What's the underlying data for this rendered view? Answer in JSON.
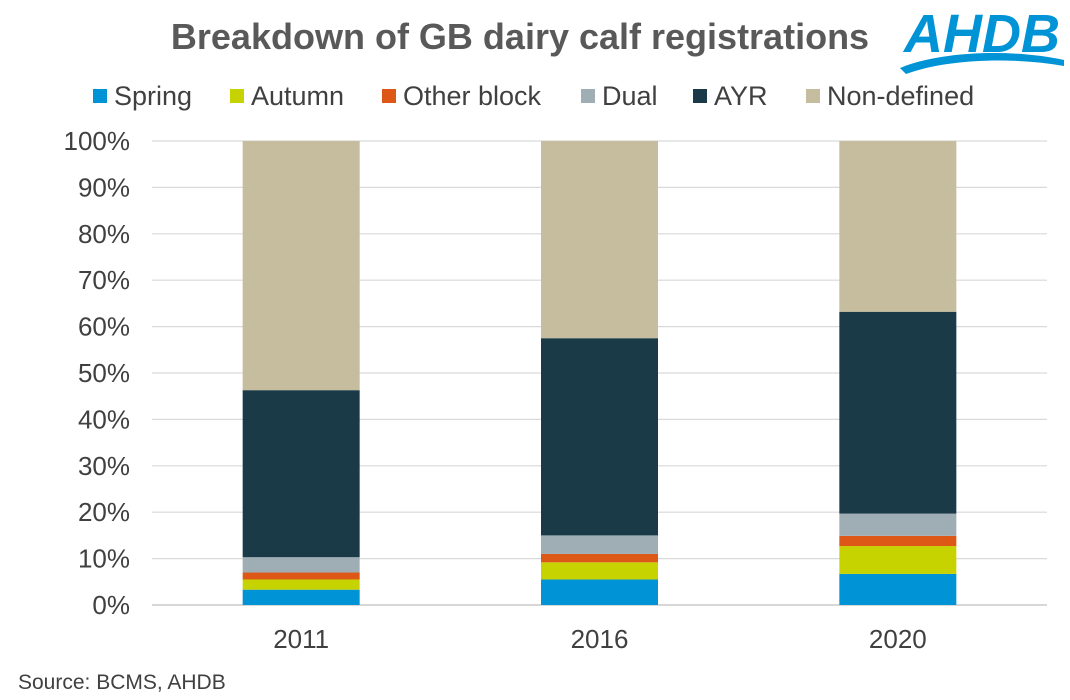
{
  "chart_data": {
    "type": "bar",
    "stacked": true,
    "percent": true,
    "title": "Breakdown of GB dairy calf registrations",
    "categories": [
      "2011",
      "2016",
      "2020"
    ],
    "series": [
      {
        "name": "Spring",
        "color": "#0093D6",
        "values": [
          3.3,
          5.5,
          6.7
        ]
      },
      {
        "name": "Autumn",
        "color": "#C7D300",
        "values": [
          2.2,
          3.7,
          6.0
        ]
      },
      {
        "name": "Other block",
        "color": "#DD5816",
        "values": [
          1.5,
          1.8,
          2.2
        ]
      },
      {
        "name": "Dual",
        "color": "#9FAEB5",
        "values": [
          3.3,
          4.0,
          4.8
        ]
      },
      {
        "name": "AYR",
        "color": "#1B3A47",
        "values": [
          36.0,
          42.5,
          43.5
        ]
      },
      {
        "name": "Non-defined",
        "color": "#C5BD9E",
        "values": [
          53.7,
          42.5,
          36.8
        ]
      }
    ],
    "ylim": [
      0,
      100
    ],
    "yticks": [
      "0%",
      "10%",
      "20%",
      "30%",
      "40%",
      "50%",
      "60%",
      "70%",
      "80%",
      "90%",
      "100%"
    ],
    "grid": true,
    "legend_position": "top",
    "xlabel": "",
    "ylabel": ""
  },
  "logo": {
    "text": "AHDB",
    "color": "#0093D6",
    "icon": "ahdb-logo"
  },
  "source": "Source: BCMS, AHDB"
}
